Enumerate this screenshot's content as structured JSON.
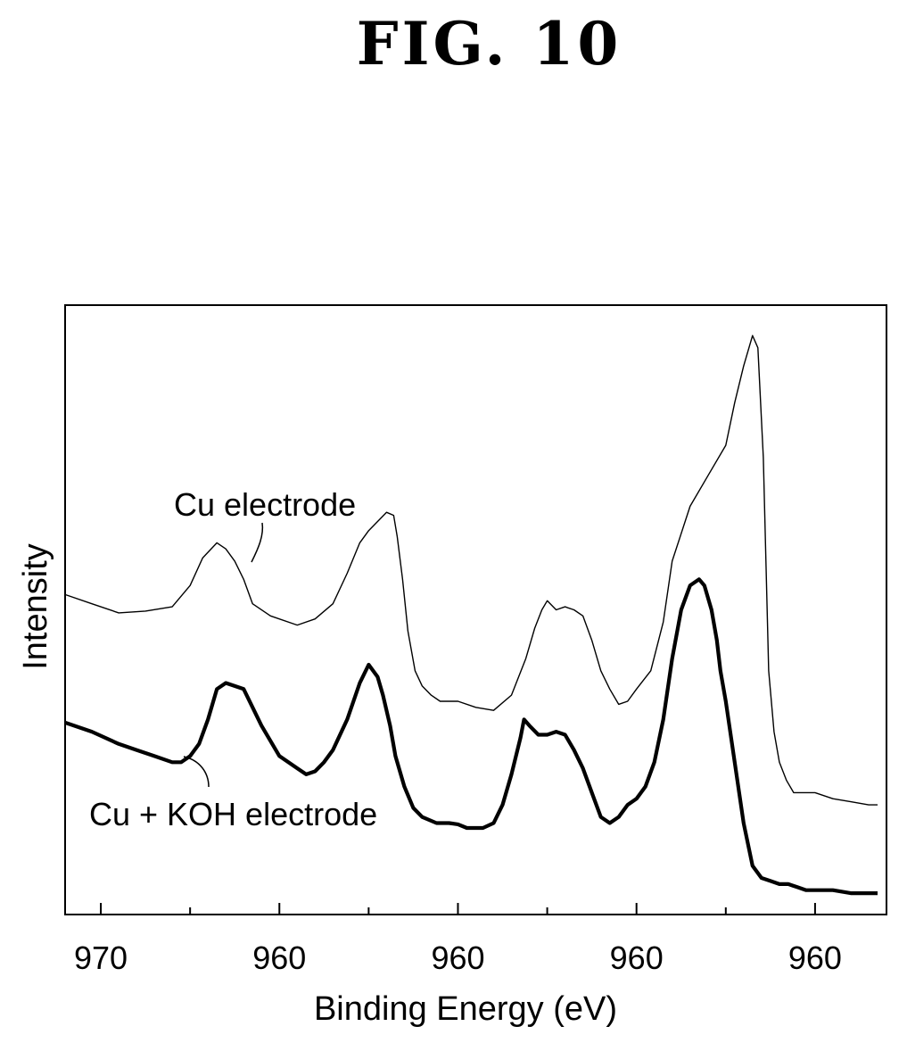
{
  "figure_label": "FIG. 10",
  "chart_data": {
    "type": "line",
    "xlabel": "Binding Energy (eV)",
    "ylabel": "Intensity",
    "xlim": [
      972,
      926
    ],
    "ylim": [
      0,
      100
    ],
    "x_ticks": [
      970,
      965,
      960,
      955,
      950,
      945,
      940,
      935,
      930
    ],
    "x_tick_labels": [
      "970",
      "960",
      "960",
      "960",
      "960"
    ],
    "major_tick_values": [
      970,
      960,
      950,
      940,
      930
    ],
    "grid": false,
    "legend": "none",
    "annotations": [
      {
        "text": "Cu electrode",
        "series": 0
      },
      {
        "text": "Cu + KOH electrode",
        "series": 1
      }
    ],
    "series": [
      {
        "name": "Cu electrode",
        "line_style": "thin",
        "x": [
          972,
          970.5,
          969,
          967.5,
          966,
          965,
          964.3,
          963.5,
          963,
          962.5,
          962,
          961.5,
          960.5,
          959,
          958,
          957,
          956.2,
          955.5,
          955,
          954.5,
          954,
          953.6,
          953.4,
          953.1,
          952.8,
          952.4,
          952,
          951.5,
          951,
          950,
          949,
          948,
          947,
          946.2,
          945.7,
          945.3,
          945,
          944.5,
          944,
          943.5,
          943,
          942.5,
          942,
          941.5,
          941,
          940.5,
          940,
          939.2,
          938.5,
          938,
          937,
          936,
          935,
          934.5,
          934,
          933.5,
          933.2,
          932.9,
          932.6,
          932.3,
          932,
          931.6,
          931.2,
          930.8,
          930,
          929,
          928,
          927,
          926.5
        ],
        "y": [
          52.5,
          51,
          49.5,
          49.8,
          50.5,
          54,
          58.5,
          61,
          60,
          58,
          55,
          51,
          49,
          47.5,
          48.5,
          51,
          56,
          61,
          63,
          64.5,
          66,
          65.5,
          62,
          55,
          46.5,
          40,
          37.5,
          36,
          35,
          35,
          34,
          33.5,
          36,
          42,
          47,
          50,
          51.5,
          50,
          50.5,
          50,
          49,
          45,
          40,
          37,
          34.5,
          35,
          37,
          40,
          48,
          58,
          67,
          72,
          77,
          84,
          90,
          95,
          93,
          75,
          40,
          30,
          25,
          22,
          20,
          20,
          20,
          19,
          18.5,
          18,
          18
        ]
      },
      {
        "name": "Cu + KOH electrode",
        "line_style": "thick",
        "x": [
          972,
          970.5,
          969,
          968,
          967,
          966,
          965.5,
          965,
          964.5,
          964,
          963.5,
          963,
          962,
          961,
          960,
          959,
          958.5,
          958,
          957.5,
          957,
          956.2,
          955.5,
          955,
          954.5,
          954.2,
          953.8,
          953.5,
          953,
          952.5,
          952,
          951.2,
          950.5,
          950,
          949.5,
          948.6,
          948,
          947.5,
          947,
          946.5,
          946.3,
          946,
          945.5,
          945,
          944.5,
          944,
          943.5,
          943,
          942.5,
          942,
          941.5,
          941,
          940.5,
          940,
          939.5,
          939,
          938.5,
          938,
          937.5,
          937,
          936.5,
          936.2,
          935.8,
          935.5,
          935.3,
          935,
          934.5,
          934,
          933.5,
          933,
          932.5,
          932,
          931.5,
          931,
          930.5,
          930,
          929,
          928,
          927,
          926.5
        ],
        "y": [
          31.5,
          30,
          28,
          27,
          26,
          25,
          25,
          26,
          28,
          32,
          37,
          38,
          37,
          31,
          26,
          24,
          23,
          23.5,
          25,
          27,
          32,
          38,
          41,
          39,
          36,
          31,
          26,
          21,
          17.5,
          16,
          15,
          15,
          14.8,
          14.2,
          14.2,
          15,
          18,
          23,
          29,
          32,
          31,
          29.5,
          29.5,
          30,
          29.5,
          27,
          24,
          20,
          16,
          15,
          16,
          18,
          19,
          21,
          25,
          32,
          42,
          50,
          54,
          55,
          54,
          50,
          45,
          40,
          35,
          25,
          15,
          8,
          6,
          5.5,
          5,
          5,
          4.5,
          4,
          4,
          4,
          3.5,
          3.5,
          3.5
        ]
      }
    ]
  }
}
